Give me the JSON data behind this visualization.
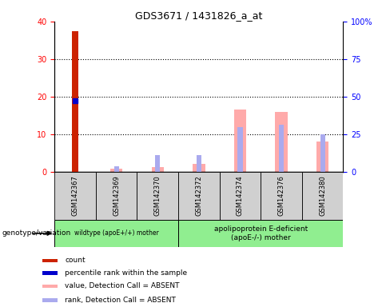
{
  "title": "GDS3671 / 1431826_a_at",
  "samples": [
    "GSM142367",
    "GSM142369",
    "GSM142370",
    "GSM142372",
    "GSM142374",
    "GSM142376",
    "GSM142380"
  ],
  "count": [
    37.5,
    0,
    0,
    0,
    0,
    0,
    0
  ],
  "percentile_rank": [
    19.0,
    0,
    0,
    0,
    0,
    0,
    0
  ],
  "value_absent": [
    0,
    0.8,
    1.2,
    2.2,
    16.5,
    16.0,
    8.0
  ],
  "rank_absent": [
    0,
    1.5,
    4.5,
    4.5,
    12.0,
    12.5,
    10.0
  ],
  "left_ylim": [
    0,
    40
  ],
  "right_ylim": [
    0,
    100
  ],
  "left_yticks": [
    0,
    10,
    20,
    30,
    40
  ],
  "right_yticks": [
    0,
    25,
    50,
    75,
    100
  ],
  "right_yticklabels": [
    "0",
    "25",
    "50",
    "75",
    "100%"
  ],
  "color_count": "#cc2200",
  "color_percentile": "#0000cc",
  "color_value_absent": "#ffaaaa",
  "color_rank_absent": "#aaaaee",
  "group1_label": "wildtype (apoE+/+) mother",
  "group2_label": "apolipoprotein E-deficient\n(apoE-/-) mother",
  "group1_count": 3,
  "group2_count": 4,
  "genotype_label": "genotype/variation",
  "legend_items": [
    {
      "label": "count",
      "color": "#cc2200"
    },
    {
      "label": "percentile rank within the sample",
      "color": "#0000cc"
    },
    {
      "label": "value, Detection Call = ABSENT",
      "color": "#ffaaaa"
    },
    {
      "label": "rank, Detection Call = ABSENT",
      "color": "#aaaaee"
    }
  ],
  "background_color": "#ffffff",
  "tick_bg": "#d0d0d0"
}
